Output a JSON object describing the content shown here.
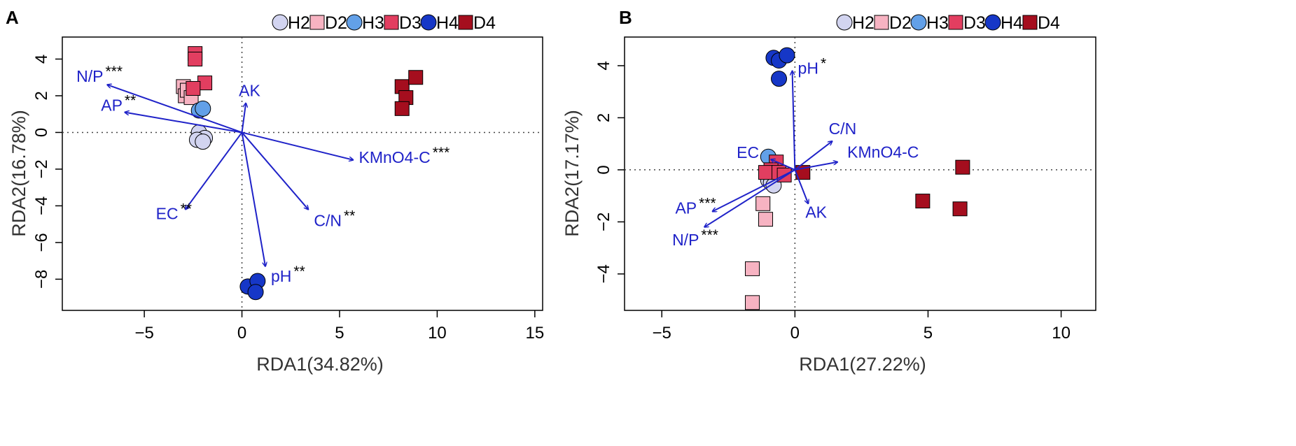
{
  "colors": {
    "H2": "#d2d4f0",
    "D2": "#f7b3c2",
    "H3": "#62a0e8",
    "D3": "#e23e60",
    "H4": "#1637c7",
    "D4": "#a50e1e",
    "arrow": "#1f22c8",
    "outline": "#000000"
  },
  "legend": [
    {
      "name": "H2",
      "shape": "circle"
    },
    {
      "name": "D2",
      "shape": "square"
    },
    {
      "name": "H3",
      "shape": "circle"
    },
    {
      "name": "D3",
      "shape": "square"
    },
    {
      "name": "H4",
      "shape": "circle"
    },
    {
      "name": "D4",
      "shape": "square"
    }
  ],
  "chart_data": [
    {
      "type": "scatter",
      "panel": "A",
      "xlabel": "RDA1(34.82%)",
      "ylabel": "RDA2(16.78%)",
      "xlim": [
        -9.2,
        15.4
      ],
      "ylim": [
        -9.7,
        5.2
      ],
      "xticks": [
        -5,
        0,
        5,
        10,
        15
      ],
      "yticks": [
        -8,
        -6,
        -4,
        -2,
        0,
        2,
        4
      ],
      "series": [
        {
          "name": "H2",
          "shape": "circle",
          "points": [
            [
              -2.2,
              0.0
            ],
            [
              -1.9,
              -0.3
            ],
            [
              -2.3,
              -0.4
            ],
            [
              -2.0,
              -0.5
            ]
          ]
        },
        {
          "name": "D2",
          "shape": "square",
          "points": [
            [
              -3.0,
              2.5
            ],
            [
              -2.9,
              2.0
            ],
            [
              -2.8,
              2.3
            ],
            [
              -2.6,
              1.9
            ]
          ]
        },
        {
          "name": "H3",
          "shape": "circle",
          "points": [
            [
              -2.2,
              1.2
            ],
            [
              -2.0,
              1.3
            ]
          ]
        },
        {
          "name": "D3",
          "shape": "square",
          "points": [
            [
              -2.4,
              4.3
            ],
            [
              -2.4,
              4.0
            ],
            [
              -1.9,
              2.7
            ],
            [
              -2.5,
              2.4
            ]
          ]
        },
        {
          "name": "H4",
          "shape": "circle",
          "points": [
            [
              0.3,
              -8.4
            ],
            [
              0.8,
              -8.1
            ],
            [
              0.7,
              -8.7
            ]
          ]
        },
        {
          "name": "D4",
          "shape": "square",
          "points": [
            [
              8.2,
              2.5
            ],
            [
              8.9,
              3.0
            ],
            [
              8.4,
              1.9
            ],
            [
              8.2,
              1.3
            ]
          ]
        }
      ],
      "arrows": [
        {
          "label": "N/P",
          "sig": "***",
          "x": -6.9,
          "y": 2.6
        },
        {
          "label": "AP",
          "sig": "**",
          "x": -6.0,
          "y": 1.1
        },
        {
          "label": "AK",
          "sig": "",
          "x": 0.2,
          "y": 1.6
        },
        {
          "label": "KMnO4-C",
          "sig": "***",
          "x": 5.7,
          "y": -1.5
        },
        {
          "label": "EC",
          "sig": "**",
          "x": -2.9,
          "y": -4.2
        },
        {
          "label": "C/N",
          "sig": "**",
          "x": 3.4,
          "y": -4.2
        },
        {
          "label": "pH",
          "sig": "**",
          "x": 1.2,
          "y": -7.3
        }
      ]
    },
    {
      "type": "scatter",
      "panel": "B",
      "xlabel": "RDA1(27.22%)",
      "ylabel": "RDA2(17.17%)",
      "xlim": [
        -6.4,
        11.3
      ],
      "ylim": [
        -5.4,
        5.1
      ],
      "xticks": [
        -5,
        0,
        5,
        10
      ],
      "yticks": [
        -4,
        -2,
        0,
        2,
        4
      ],
      "series": [
        {
          "name": "H2",
          "shape": "circle",
          "points": [
            [
              -1.0,
              -0.4
            ],
            [
              -0.9,
              -0.5
            ],
            [
              -0.8,
              -0.6
            ]
          ]
        },
        {
          "name": "D2",
          "shape": "square",
          "points": [
            [
              -1.2,
              -1.3
            ],
            [
              -1.1,
              -1.9
            ],
            [
              -1.6,
              -3.8
            ],
            [
              -1.6,
              -5.1
            ]
          ]
        },
        {
          "name": "H3",
          "shape": "circle",
          "points": [
            [
              -1.0,
              0.5
            ]
          ]
        },
        {
          "name": "D3",
          "shape": "square",
          "points": [
            [
              -0.7,
              0.3
            ],
            [
              -0.9,
              0.0
            ],
            [
              -1.1,
              -0.1
            ],
            [
              -0.6,
              -0.1
            ],
            [
              -0.4,
              -0.2
            ]
          ]
        },
        {
          "name": "H4",
          "shape": "circle",
          "points": [
            [
              -0.8,
              4.3
            ],
            [
              -0.6,
              4.2
            ],
            [
              -0.3,
              4.4
            ],
            [
              -0.6,
              3.5
            ]
          ]
        },
        {
          "name": "D4",
          "shape": "square",
          "points": [
            [
              0.3,
              -0.1
            ],
            [
              4.8,
              -1.2
            ],
            [
              6.3,
              0.1
            ],
            [
              6.2,
              -1.5
            ]
          ]
        }
      ],
      "arrows": [
        {
          "label": "pH",
          "sig": "*",
          "x": -0.1,
          "y": 3.8
        },
        {
          "label": "C/N",
          "sig": "",
          "x": 1.4,
          "y": 1.1
        },
        {
          "label": "KMnO4-C",
          "sig": "",
          "x": 1.6,
          "y": 0.3
        },
        {
          "label": "EC",
          "sig": "",
          "x": -0.9,
          "y": 0.4
        },
        {
          "label": "AK",
          "sig": "",
          "x": 0.5,
          "y": -1.3
        },
        {
          "label": "AP",
          "sig": "***",
          "x": -3.1,
          "y": -1.6
        },
        {
          "label": "N/P",
          "sig": "***",
          "x": -3.4,
          "y": -2.2
        }
      ]
    }
  ]
}
